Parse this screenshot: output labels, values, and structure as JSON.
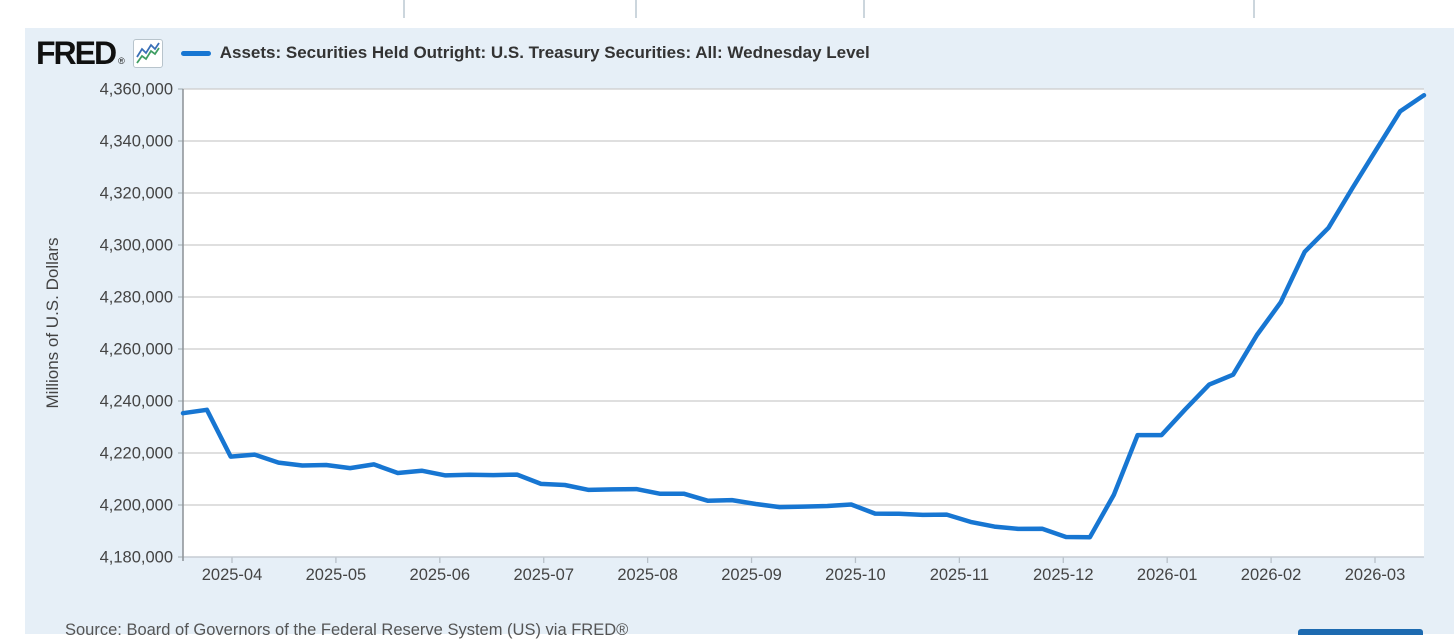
{
  "brand": {
    "logo_text": "FRED",
    "registered_mark": "®",
    "icon": "fred-sparkline-icon"
  },
  "legend": {
    "series_label": "Assets: Securities Held Outright: U.S. Treasury Securities: All: Wednesday Level",
    "swatch_color": "#1776d2"
  },
  "footer": {
    "source_text": "Source: Board of Governors of the Federal Reserve System (US) via FRED®"
  },
  "colors": {
    "accent_blue": "#1776d2",
    "card_bg": "#e6eff7",
    "grid": "#cccccc",
    "bottom_bar": "#1d6ab0"
  },
  "chart_data": {
    "type": "line",
    "title": "Assets: Securities Held Outright: U.S. Treasury Securities: All: Wednesday Level",
    "ylabel": "Millions of U.S. Dollars",
    "xlabel": "",
    "ylim": [
      4180000,
      4360000
    ],
    "y_tick_step": 20000,
    "grid": true,
    "legend_position": "top-left",
    "line_color": "#1776d2",
    "y_ticks": [
      {
        "value": 4180000,
        "label": "4,180,000"
      },
      {
        "value": 4200000,
        "label": "4,200,000"
      },
      {
        "value": 4220000,
        "label": "4,220,000"
      },
      {
        "value": 4240000,
        "label": "4,240,000"
      },
      {
        "value": 4260000,
        "label": "4,260,000"
      },
      {
        "value": 4280000,
        "label": "4,280,000"
      },
      {
        "value": 4300000,
        "label": "4,300,000"
      },
      {
        "value": 4320000,
        "label": "4,320,000"
      },
      {
        "value": 4340000,
        "label": "4,340,000"
      },
      {
        "value": 4360000,
        "label": "4,360,000"
      }
    ],
    "x_tick_labels": [
      "2025-04",
      "2025-05",
      "2025-06",
      "2025-07",
      "2025-08",
      "2025-09",
      "2025-10",
      "2025-11",
      "2025-12",
      "2026-01",
      "2026-02",
      "2026-03"
    ],
    "series": [
      {
        "name": "Assets: Securities Held Outright: U.S. Treasury Securities: All: Wednesday Level",
        "points": [
          [
            "2025-03-19",
            4235300
          ],
          [
            "2025-03-26",
            4236600
          ],
          [
            "2025-04-02",
            4218600
          ],
          [
            "2025-04-09",
            4219400
          ],
          [
            "2025-04-16",
            4216300
          ],
          [
            "2025-04-23",
            4215200
          ],
          [
            "2025-04-30",
            4215400
          ],
          [
            "2025-05-07",
            4214200
          ],
          [
            "2025-05-14",
            4215600
          ],
          [
            "2025-05-21",
            4212300
          ],
          [
            "2025-05-28",
            4213200
          ],
          [
            "2025-06-04",
            4211400
          ],
          [
            "2025-06-11",
            4211600
          ],
          [
            "2025-06-18",
            4211500
          ],
          [
            "2025-06-25",
            4211700
          ],
          [
            "2025-07-02",
            4208100
          ],
          [
            "2025-07-09",
            4207700
          ],
          [
            "2025-07-16",
            4205800
          ],
          [
            "2025-07-23",
            4206000
          ],
          [
            "2025-07-30",
            4206100
          ],
          [
            "2025-08-06",
            4204300
          ],
          [
            "2025-08-13",
            4204300
          ],
          [
            "2025-08-20",
            4201600
          ],
          [
            "2025-08-27",
            4201900
          ],
          [
            "2025-09-03",
            4200400
          ],
          [
            "2025-09-10",
            4199200
          ],
          [
            "2025-09-17",
            4199400
          ],
          [
            "2025-09-24",
            4199600
          ],
          [
            "2025-10-01",
            4200200
          ],
          [
            "2025-10-08",
            4196700
          ],
          [
            "2025-10-15",
            4196600
          ],
          [
            "2025-10-22",
            4196200
          ],
          [
            "2025-10-29",
            4196300
          ],
          [
            "2025-11-05",
            4193500
          ],
          [
            "2025-11-12",
            4191700
          ],
          [
            "2025-11-19",
            4190800
          ],
          [
            "2025-11-26",
            4190900
          ],
          [
            "2025-12-03",
            4187700
          ],
          [
            "2025-12-10",
            4187600
          ],
          [
            "2025-12-17",
            4203900
          ],
          [
            "2025-12-24",
            4226900
          ],
          [
            "2025-12-31",
            4226900
          ],
          [
            "2026-01-07",
            4236800
          ],
          [
            "2026-01-14",
            4246300
          ],
          [
            "2026-01-21",
            4250100
          ],
          [
            "2026-01-28",
            4265400
          ],
          [
            "2026-02-04",
            4278000
          ],
          [
            "2026-02-11",
            4297400
          ],
          [
            "2026-02-18",
            4306600
          ],
          [
            "2026-02-25",
            4321900
          ],
          [
            "2026-03-04",
            4336700
          ],
          [
            "2026-03-11",
            4351400
          ],
          [
            "2026-03-18",
            4357600
          ]
        ]
      }
    ]
  }
}
